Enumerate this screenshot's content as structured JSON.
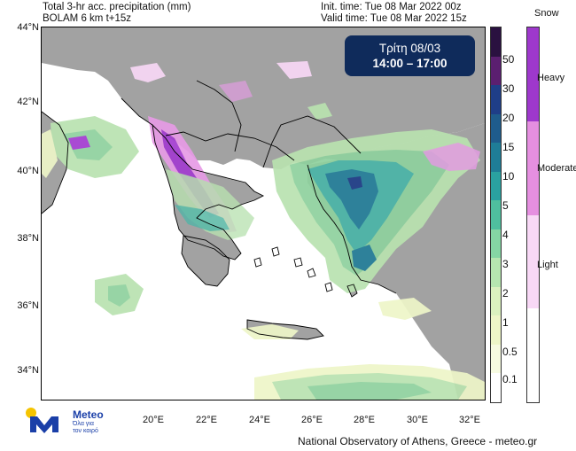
{
  "header": {
    "line1_left": "Total 3-hr acc. precipitation (mm)",
    "line2_left": "BOLAM 6 km t+15z",
    "line1_right": "Init. time: Tue 08 Mar 2022 00z",
    "line2_right": "Valid time: Tue 08 Mar 2022 15z"
  },
  "time_box": {
    "day": "Τρίτη 08/03",
    "hours": "14:00 – 17:00"
  },
  "map": {
    "lat_labels": [
      "44°N",
      "42°N",
      "40°N",
      "38°N",
      "36°N",
      "34°N"
    ],
    "lon_labels": [
      "20°E",
      "22°E",
      "24°E",
      "26°E",
      "28°E",
      "30°E",
      "32°E"
    ],
    "colors": {
      "sea": "#ffffff",
      "land": "#a2a2a2",
      "light_green": "#eef6c8",
      "green": "#b9e2b0",
      "mid_green": "#8fd19e",
      "teal": "#4bb5a8",
      "dark_teal": "#257f9a",
      "purple": "#a23bd0",
      "pink": "#e79be6",
      "border": "#000000"
    }
  },
  "precip_scale": {
    "labels": [
      "50",
      "30",
      "20",
      "15",
      "10",
      "5",
      "4",
      "3",
      "2",
      "1",
      "0.5",
      "0.1"
    ],
    "colors": [
      "#2a1140",
      "#5b1f70",
      "#1f3e88",
      "#1f5c8c",
      "#1f7d97",
      "#2aa1a0",
      "#4fbf9e",
      "#85d6a4",
      "#b6e6b0",
      "#dbf1bf",
      "#eef6c8",
      "#f7fbe1",
      "#ffffff"
    ]
  },
  "snow_scale": {
    "title": "Snow",
    "labels": [
      "Heavy",
      "Moderate",
      "Light"
    ],
    "colors": [
      "#9e38cc",
      "#e58fe0",
      "#f8d8f6",
      "#ffffff"
    ]
  },
  "footer": {
    "credit": "National Observatory of Athens, Greece - meteo.gr"
  },
  "logo": {
    "brand": "Meteo",
    "tagline_1": "Όλα για",
    "tagline_2": "τον καιρό"
  }
}
